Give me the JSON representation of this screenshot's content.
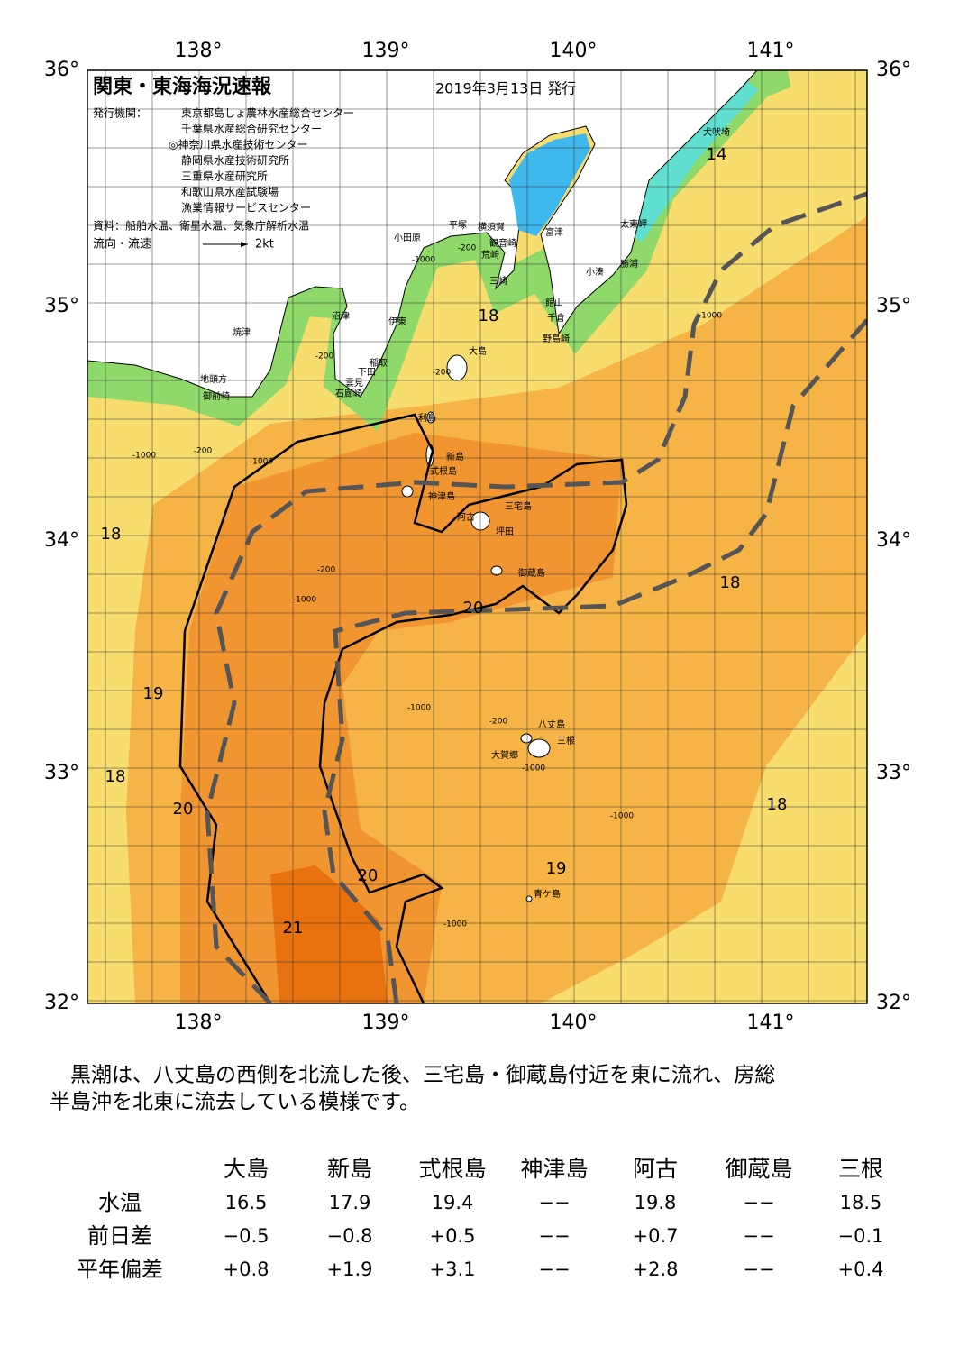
{
  "title": "関東・東海海況速報",
  "issued": "2019年3月13日 発行",
  "issuers_label": "発行機関：",
  "issuers": [
    "東京都島しょ農林水産総合センター",
    "千葉県水産総合研究センター",
    "◎神奈川県水産技術センター",
    "静岡県水産技術研究所",
    "三重県水産研究所",
    "和歌山県水産試験場",
    "漁業情報サービスセンター"
  ],
  "source": "資料：船舶水温、衛星水温、気象庁解析水温",
  "flow_legend": {
    "label": "流向・流速",
    "scale": "2kt"
  },
  "axes": {
    "lon_top": [
      "138°",
      "139°",
      "140°",
      "141°"
    ],
    "lon_bottom": [
      "138°",
      "139°",
      "140°",
      "141°"
    ],
    "lat_left": [
      "36°",
      "35°",
      "34°",
      "33°",
      "32°"
    ],
    "lat_right": [
      "36°",
      "35°",
      "34°",
      "33°",
      "32°"
    ]
  },
  "places": [
    "犬吠埼",
    "太東岬",
    "勝浦",
    "小湊",
    "館山",
    "千倉",
    "野島崎",
    "三崎",
    "荒崎",
    "観音崎",
    "横須賀",
    "富津",
    "平塚",
    "小田原",
    "沼津",
    "伊東",
    "稲取",
    "下田",
    "雲見",
    "石廊崎",
    "焼津",
    "地頭方",
    "御前崎",
    "大島",
    "利島",
    "新島",
    "式根島",
    "神津島",
    "三宅島",
    "阿古",
    "坪田",
    "御蔵島",
    "八丈島",
    "三根",
    "大賀郷",
    "青ケ島"
  ],
  "temperature_labels": [
    "14",
    "18",
    "18",
    "18",
    "20",
    "19",
    "18",
    "20",
    "18",
    "20",
    "19",
    "21"
  ],
  "depth_labels": [
    "-200",
    "-1000",
    "-1000",
    "-200",
    "-200",
    "-1000",
    "-200",
    "-1000",
    "-200",
    "-1000",
    "-1000",
    "-200",
    "-1000",
    "-1000",
    "-1000"
  ],
  "summary": [
    "　黒潮は、八丈島の西側を北流した後、三宅島・御蔵島付近を東に流れ、房総",
    "半島沖を北東に流去している模様です。"
  ],
  "table": {
    "columns": [
      "大島",
      "新島",
      "式根島",
      "神津島",
      "阿古",
      "御蔵島",
      "三根"
    ],
    "rows": [
      [
        "水温",
        "16.5",
        "17.9",
        "19.4",
        "−−",
        "19.8",
        "−−",
        "18.5"
      ],
      [
        "前日差",
        "−0.5",
        "−0.8",
        "+0.5",
        "−−",
        "+0.7",
        "−−",
        "−0.1"
      ],
      [
        "平年偏差",
        "+0.8",
        "+1.9",
        "+3.1",
        "−−",
        "+2.8",
        "−−",
        "+0.4"
      ]
    ]
  }
}
